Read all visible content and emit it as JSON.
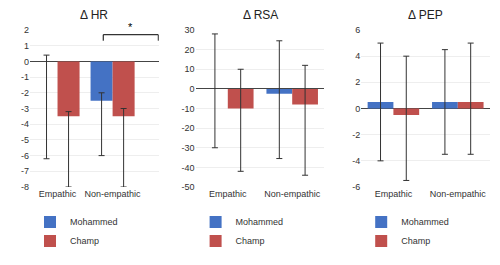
{
  "chart_data": [
    {
      "type": "bar",
      "title": "Δ HR",
      "categories": [
        "Empathic",
        "Non-empathic"
      ],
      "series": [
        {
          "name": "Mohammed",
          "color": "#4472C4",
          "values": [
            0.0,
            -2.5
          ],
          "error_low": [
            6.2,
            3.5
          ],
          "error_high": [
            0.4,
            0.5
          ]
        },
        {
          "name": "Champ",
          "color": "#C0504D",
          "values": [
            -3.5,
            -3.5
          ],
          "error_low": [
            4.5,
            4.5
          ],
          "error_high": [
            0.3,
            0.5
          ]
        }
      ],
      "ylim": [
        -8,
        2
      ],
      "yticks": [
        -8,
        -7,
        -6,
        -5,
        -4,
        -3,
        -2,
        -1,
        0,
        1,
        2
      ],
      "grid": true,
      "legend": "bottom",
      "annotations": [
        {
          "text": "*",
          "x": [
            0.83,
            1.83
          ],
          "y": 1.7
        }
      ]
    },
    {
      "type": "bar",
      "title": "Δ RSA",
      "categories": [
        "Empathic",
        "Non-empathic"
      ],
      "series": [
        {
          "name": "Mohammed",
          "color": "#4472C4",
          "values": [
            0.0,
            -2.5
          ],
          "error_low": [
            30.0,
            33.0
          ],
          "error_high": [
            28.0,
            27.0
          ]
        },
        {
          "name": "Champ",
          "color": "#C0504D",
          "values": [
            -10.0,
            -8.0
          ],
          "error_low": [
            32.0,
            36.0
          ],
          "error_high": [
            20.0,
            20.0
          ]
        }
      ],
      "ylim": [
        -50,
        30
      ],
      "yticks": [
        -50,
        -40,
        -30,
        -20,
        -10,
        0,
        10,
        20,
        30
      ],
      "grid": true,
      "legend": "bottom"
    },
    {
      "type": "bar",
      "title": "Δ PEP",
      "categories": [
        "Empathic",
        "Non-empathic"
      ],
      "series": [
        {
          "name": "Mohammed",
          "color": "#4472C4",
          "values": [
            0.5,
            0.5
          ],
          "error_low": [
            4.5,
            4.0
          ],
          "error_high": [
            4.5,
            4.0
          ]
        },
        {
          "name": "Champ",
          "color": "#C0504D",
          "values": [
            -0.5,
            0.5
          ],
          "error_low": [
            5.0,
            4.0
          ],
          "error_high": [
            4.5,
            4.5
          ]
        }
      ],
      "ylim": [
        -6,
        6
      ],
      "yticks": [
        -6,
        -4,
        -2,
        0,
        2,
        4,
        6
      ],
      "grid": true,
      "legend": "bottom"
    }
  ]
}
